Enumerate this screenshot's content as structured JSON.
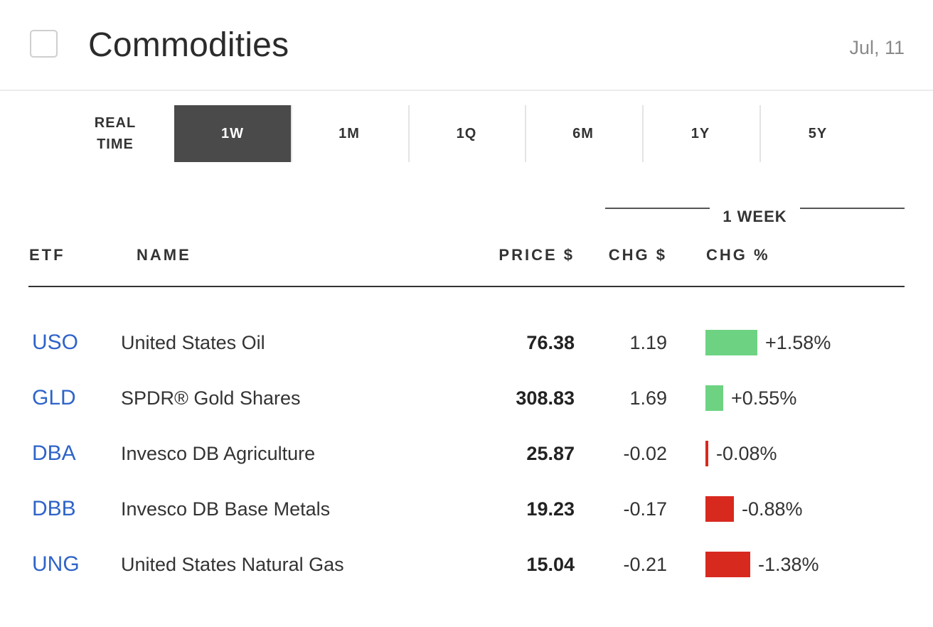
{
  "header": {
    "title": "Commodities",
    "date": "Jul, 11"
  },
  "tabs": [
    {
      "label": "REAL\nTIME",
      "active": false
    },
    {
      "label": "1W",
      "active": true
    },
    {
      "label": "1M",
      "active": false
    },
    {
      "label": "1Q",
      "active": false
    },
    {
      "label": "6M",
      "active": false
    },
    {
      "label": "1Y",
      "active": false
    },
    {
      "label": "5Y",
      "active": false
    }
  ],
  "table": {
    "group_header": "1 WEEK",
    "columns": {
      "etf": "ETF",
      "name": "NAME",
      "price": "PRICE $",
      "chg": "CHG $",
      "pct": "CHG %"
    },
    "rows": [
      {
        "etf": "USO",
        "name": "United States Oil",
        "price": "76.38",
        "chg": "1.19",
        "pct": "+1.58%",
        "pct_value": 1.58
      },
      {
        "etf": "GLD",
        "name": "SPDR® Gold Shares",
        "price": "308.83",
        "chg": "1.69",
        "pct": "+0.55%",
        "pct_value": 0.55
      },
      {
        "etf": "DBA",
        "name": "Invesco DB Agriculture",
        "price": "25.87",
        "chg": "-0.02",
        "pct": "-0.08%",
        "pct_value": -0.08
      },
      {
        "etf": "DBB",
        "name": "Invesco DB Base Metals",
        "price": "19.23",
        "chg": "-0.17",
        "pct": "-0.88%",
        "pct_value": -0.88
      },
      {
        "etf": "UNG",
        "name": "United States Natural Gas",
        "price": "15.04",
        "chg": "-0.21",
        "pct": "-1.38%",
        "pct_value": -1.38
      }
    ]
  },
  "colors": {
    "positive": "#6dd382",
    "negative": "#d8291f",
    "link": "#2f64c8",
    "active_tab": "#4a4a4a"
  }
}
